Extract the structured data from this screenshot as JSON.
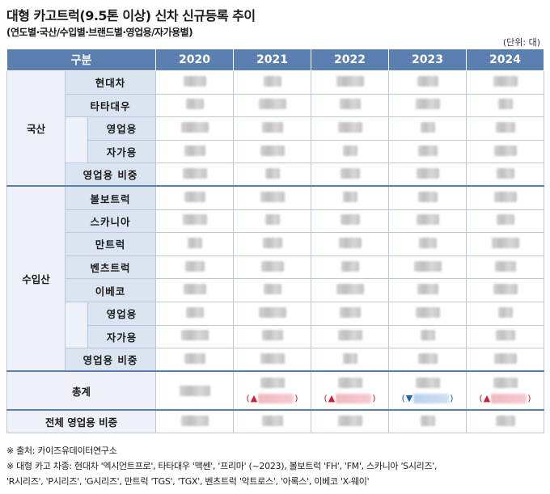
{
  "title": "대형 카고트럭(9.5톤 이상) 신차 신규등록 추이",
  "subtitle": "(연도별·국산/수입별·브랜드별·영업용/자가용별)",
  "unit": "(단위: 대)",
  "header": {
    "category": "구분",
    "years": [
      "2020",
      "2021",
      "2022",
      "2023",
      "2024"
    ]
  },
  "domestic": {
    "group": "국산",
    "brands": [
      "현대차",
      "타타대우"
    ],
    "usage": [
      "영업용",
      "자가용"
    ],
    "ratio": "영업용 비중"
  },
  "imported": {
    "group": "수입산",
    "brands": [
      "볼보트럭",
      "스카니아",
      "만트럭",
      "벤츠트럭",
      "이베코"
    ],
    "usage": [
      "영업용",
      "자가용"
    ],
    "ratio": "영업용 비중"
  },
  "total": {
    "label": "총계",
    "deltas": [
      null,
      {
        "dir": "up",
        "symbol": "▲",
        "open": "(",
        "close": ")"
      },
      {
        "dir": "up",
        "symbol": "▲",
        "open": "(",
        "close": ")"
      },
      {
        "dir": "down",
        "symbol": "▼",
        "open": "(",
        "close": ")"
      },
      {
        "dir": "up",
        "symbol": "▲",
        "open": "(",
        "close": ")"
      }
    ]
  },
  "overall_ratio": "전체 영업용 비중",
  "notes": [
    "※ 출처: 카이즈유데이터연구소",
    "※ 대형 카고 차종: 현대차 '엑시언트프로', 타타대우 '맥쎈', '프리마' (~2023), 볼보트럭 'FH', 'FM', 스카니아 'S시리즈',",
    "'R시리즈', 'P시리즈', 'G시리즈', 만트럭 'TGS', 'TGX', 벤츠트럭 '악트로스', '아록스', 이베코 'X-웨이'"
  ]
}
